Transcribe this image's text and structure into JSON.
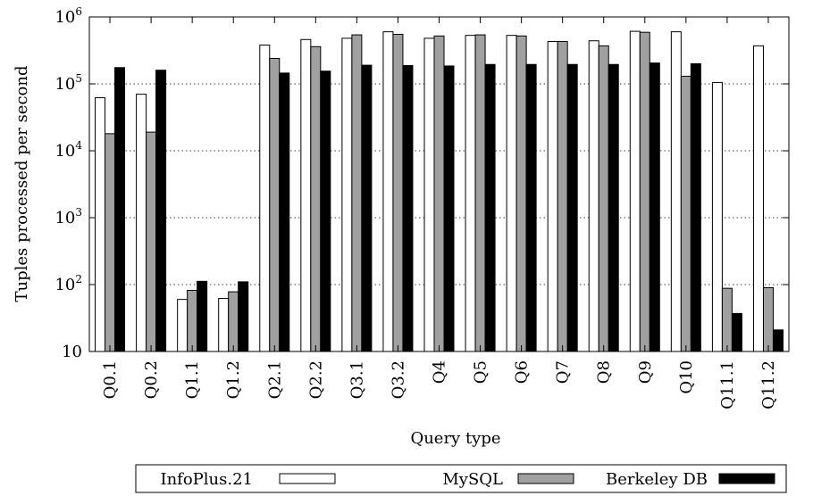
{
  "chart_data": {
    "type": "bar",
    "scale": "log",
    "xlabel": "Query type",
    "ylabel": "Tuples processed per second",
    "ylim": [
      10,
      1000000
    ],
    "grid": "horizontal-dotted",
    "legend_position": "bottom",
    "y_ticks": [
      {
        "value": 10,
        "base": "10",
        "exp": ""
      },
      {
        "value": 100,
        "base": "10",
        "exp": "2"
      },
      {
        "value": 1000,
        "base": "10",
        "exp": "3"
      },
      {
        "value": 10000,
        "base": "10",
        "exp": "4"
      },
      {
        "value": 100000,
        "base": "10",
        "exp": "5"
      },
      {
        "value": 1000000,
        "base": "10",
        "exp": "6"
      }
    ],
    "categories": [
      "Q0.1",
      "Q0.2",
      "Q1.1",
      "Q1.2",
      "Q2.1",
      "Q2.2",
      "Q3.1",
      "Q3.2",
      "Q4",
      "Q5",
      "Q6",
      "Q7",
      "Q8",
      "Q9",
      "Q10",
      "Q11.1",
      "Q11.2"
    ],
    "series": [
      {
        "name": "InfoPlus.21",
        "color": "#ffffff",
        "values": [
          62000,
          70000,
          60,
          62,
          380000,
          460000,
          480000,
          600000,
          480000,
          530000,
          530000,
          430000,
          440000,
          610000,
          600000,
          105000,
          370000
        ]
      },
      {
        "name": "MySQL",
        "color": "#a0a0a0",
        "values": [
          18000,
          19000,
          82,
          78,
          240000,
          360000,
          540000,
          550000,
          520000,
          540000,
          520000,
          430000,
          370000,
          590000,
          130000,
          88,
          90
        ]
      },
      {
        "name": "Berkeley DB",
        "color": "#000000",
        "values": [
          175000,
          160000,
          112,
          110,
          145000,
          155000,
          190000,
          188000,
          185000,
          195000,
          195000,
          195000,
          195000,
          205000,
          200000,
          37,
          21
        ]
      }
    ]
  }
}
